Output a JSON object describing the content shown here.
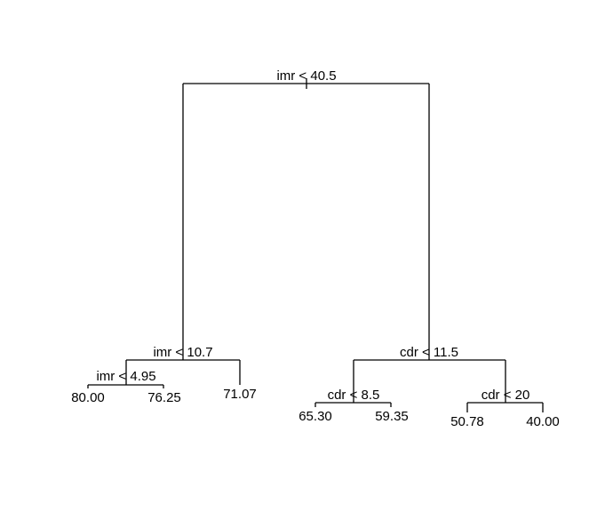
{
  "tree": {
    "line_color": "#000000",
    "background": "#ffffff",
    "root": {
      "split": "imr < 40.5",
      "left": {
        "split": "imr < 10.7",
        "left": {
          "split": "imr < 4.95",
          "left": {
            "leaf": "80.00"
          },
          "right": {
            "leaf": "76.25"
          }
        },
        "right": {
          "leaf": "71.07"
        }
      },
      "right": {
        "split": "cdr < 11.5",
        "left": {
          "split": "cdr < 8.5",
          "left": {
            "leaf": "65.30"
          },
          "right": {
            "leaf": "59.35"
          }
        },
        "right": {
          "split": "cdr < 20",
          "left": {
            "leaf": "50.78"
          },
          "right": {
            "leaf": "40.00"
          }
        }
      }
    }
  }
}
